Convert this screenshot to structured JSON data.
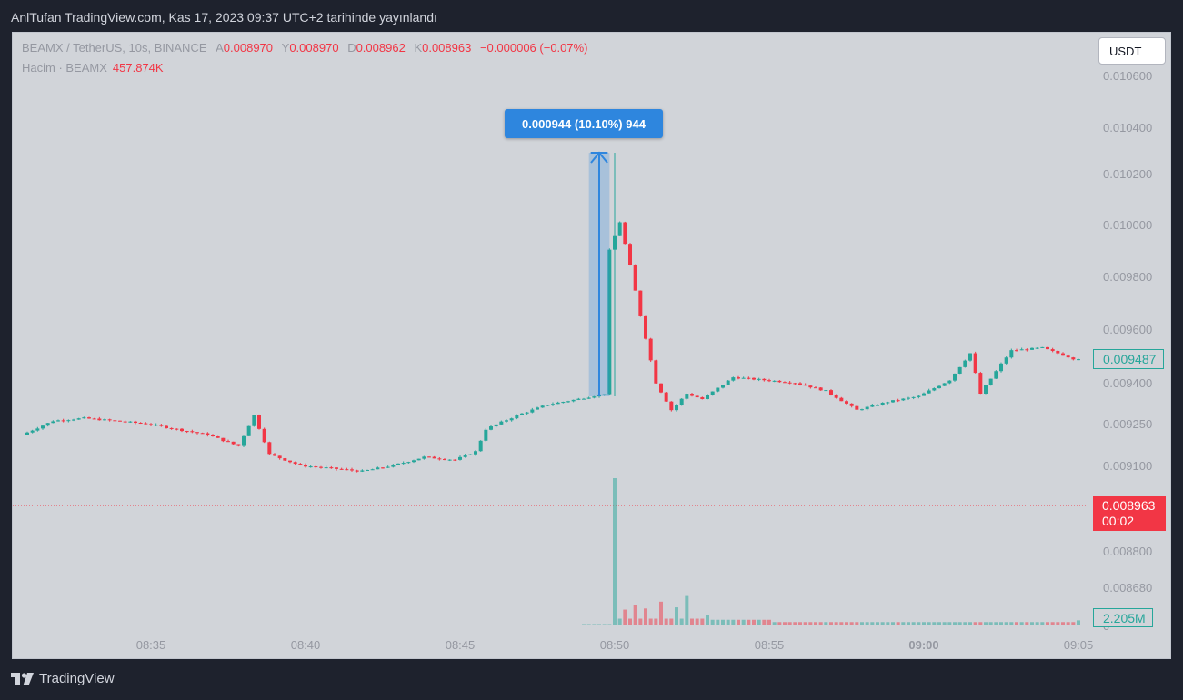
{
  "caption": "AnlTufan TradingView.com, Kas 17, 2023 09:37 UTC+2 tarihinde yayınlandı",
  "legend": {
    "symbol": "BEAMX / TetherUS, 10s, BINANCE",
    "o_label": "A",
    "o_value": "0.008970",
    "h_label": "Y",
    "h_value": "0.008970",
    "l_label": "D",
    "l_value": "0.008962",
    "c_label": "K",
    "c_value": "0.008963",
    "change": "−0.000006 (−0.07%)",
    "volume_label": "Hacim · BEAMX",
    "volume_value": "457.874K"
  },
  "currency_button": "USDT",
  "measure_label": "0.000944 (10.10%) 944",
  "tags": {
    "last_price": "0.009487",
    "current_price": "0.008963",
    "countdown": "00:02",
    "volume": "2.205M"
  },
  "footer": "TradingView",
  "colors": {
    "up": "#26a69a",
    "down": "#f23645",
    "measure": "#2e86de",
    "background": "#d1d4d9"
  },
  "chart_data": {
    "type": "candlestick",
    "price_axis_ticks": [
      "0.010600",
      "0.010400",
      "0.010200",
      "0.010000",
      "0.009800",
      "0.009600",
      "0.009400",
      "0.009250",
      "0.009100",
      "0.008800",
      "0.008680",
      "0"
    ],
    "time_axis_ticks": [
      "08:35",
      "08:40",
      "08:45",
      "08:50",
      "08:55",
      "09:00",
      "09:05"
    ],
    "time_range": [
      "08:31",
      "09:05"
    ],
    "price_range": [
      0.00862,
      0.01064
    ],
    "measure": {
      "from": 0.00935,
      "to": 0.01029,
      "time_from": "08:49:10",
      "time_to": "08:49:50"
    },
    "current_price_line": 0.008963,
    "series": [
      {
        "name": "BEAMX / TetherUS",
        "points": [
          [
            "08:31",
            0.00921
          ],
          [
            "08:32",
            0.00926
          ],
          [
            "08:33",
            0.00927
          ],
          [
            "08:34",
            0.00926
          ],
          [
            "08:35",
            0.00925
          ],
          [
            "08:36",
            0.00923
          ],
          [
            "08:37",
            0.00921
          ],
          [
            "08:38",
            0.00917
          ],
          [
            "08:38:30",
            0.00928
          ],
          [
            "08:39",
            0.00914
          ],
          [
            "08:40",
            0.0091
          ],
          [
            "08:41",
            0.00909
          ],
          [
            "08:42",
            0.00908
          ],
          [
            "08:43",
            0.0091
          ],
          [
            "08:44",
            0.00913
          ],
          [
            "08:45",
            0.00912
          ],
          [
            "08:45:40",
            0.00915
          ],
          [
            "08:46",
            0.00923
          ],
          [
            "08:47",
            0.00928
          ],
          [
            "08:48",
            0.00932
          ],
          [
            "08:49",
            0.00934
          ],
          [
            "08:49:50",
            0.00936
          ],
          [
            "08:50",
            0.0099
          ],
          [
            "08:50:20",
            0.01001
          ],
          [
            "08:50:40",
            0.00984
          ],
          [
            "08:51",
            0.00965
          ],
          [
            "08:51:30",
            0.0094
          ],
          [
            "08:52",
            0.0093
          ],
          [
            "08:52:30",
            0.00936
          ],
          [
            "08:53",
            0.00934
          ],
          [
            "08:54",
            0.00942
          ],
          [
            "08:55",
            0.00941
          ],
          [
            "08:56",
            0.0094
          ],
          [
            "08:57",
            0.00937
          ],
          [
            "08:58",
            0.0093
          ],
          [
            "08:59",
            0.00933
          ],
          [
            "09:00",
            0.00935
          ],
          [
            "09:01",
            0.00941
          ],
          [
            "09:01:40",
            0.00951
          ],
          [
            "09:02",
            0.00936
          ],
          [
            "09:02:40",
            0.00947
          ],
          [
            "09:03",
            0.00952
          ],
          [
            "09:04",
            0.00953
          ],
          [
            "09:05",
            0.00949
          ]
        ]
      },
      {
        "name": "Hacim · BEAMX",
        "points": [
          [
            "08:31",
            8
          ],
          [
            "08:40",
            8
          ],
          [
            "08:49",
            12
          ],
          [
            "08:50",
            1300
          ],
          [
            "08:50:20",
            140
          ],
          [
            "08:50:40",
            180
          ],
          [
            "08:51",
            150
          ],
          [
            "08:51:30",
            210
          ],
          [
            "08:52",
            160
          ],
          [
            "08:52:20",
            260
          ],
          [
            "08:53",
            90
          ],
          [
            "08:55",
            50
          ],
          [
            "09:00",
            30
          ],
          [
            "09:05",
            45
          ]
        ]
      }
    ]
  }
}
